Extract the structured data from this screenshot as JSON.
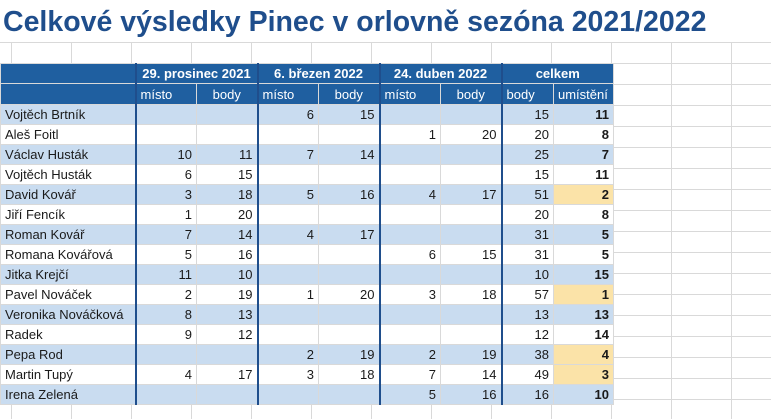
{
  "title": "Celkové výsledky Pinec v orlovně sezóna 2021/2022",
  "headers": {
    "events": [
      "29. prosinec 2021",
      "6. březen 2022",
      "24. duben 2022"
    ],
    "total": "celkem",
    "place": "místo",
    "points": "body",
    "total_points": "body",
    "rank": "umístění"
  },
  "rows": [
    {
      "name": "Vojtěch Brtník",
      "e1p": "",
      "e1b": "",
      "e2p": "6",
      "e2b": "15",
      "e3p": "",
      "e3b": "",
      "body": "15",
      "rank": "11"
    },
    {
      "name": "Aleš Foitl",
      "e1p": "",
      "e1b": "",
      "e2p": "",
      "e2b": "",
      "e3p": "1",
      "e3b": "20",
      "body": "20",
      "rank": "8"
    },
    {
      "name": "Václav Husták",
      "e1p": "10",
      "e1b": "11",
      "e2p": "7",
      "e2b": "14",
      "e3p": "",
      "e3b": "",
      "body": "25",
      "rank": "7"
    },
    {
      "name": "Vojtěch Husták",
      "e1p": "6",
      "e1b": "15",
      "e2p": "",
      "e2b": "",
      "e3p": "",
      "e3b": "",
      "body": "15",
      "rank": "11"
    },
    {
      "name": "David Kovář",
      "e1p": "3",
      "e1b": "18",
      "e2p": "5",
      "e2b": "16",
      "e3p": "4",
      "e3b": "17",
      "body": "51",
      "rank": "2"
    },
    {
      "name": "Jiří Fencík",
      "e1p": "1",
      "e1b": "20",
      "e2p": "",
      "e2b": "",
      "e3p": "",
      "e3b": "",
      "body": "20",
      "rank": "8"
    },
    {
      "name": "Roman Kovář",
      "e1p": "7",
      "e1b": "14",
      "e2p": "4",
      "e2b": "17",
      "e3p": "",
      "e3b": "",
      "body": "31",
      "rank": "5"
    },
    {
      "name": "Romana Kovářová",
      "e1p": "5",
      "e1b": "16",
      "e2p": "",
      "e2b": "",
      "e3p": "6",
      "e3b": "15",
      "body": "31",
      "rank": "5"
    },
    {
      "name": "Jitka Krejčí",
      "e1p": "11",
      "e1b": "10",
      "e2p": "",
      "e2b": "",
      "e3p": "",
      "e3b": "",
      "body": "10",
      "rank": "15"
    },
    {
      "name": "Pavel Nováček",
      "e1p": "2",
      "e1b": "19",
      "e2p": "1",
      "e2b": "20",
      "e3p": "3",
      "e3b": "18",
      "body": "57",
      "rank": "1"
    },
    {
      "name": "Veronika Nováčková",
      "e1p": "8",
      "e1b": "13",
      "e2p": "",
      "e2b": "",
      "e3p": "",
      "e3b": "",
      "body": "13",
      "rank": "13"
    },
    {
      "name": "Radek",
      "e1p": "9",
      "e1b": "12",
      "e2p": "",
      "e2b": "",
      "e3p": "",
      "e3b": "",
      "body": "12",
      "rank": "14"
    },
    {
      "name": "Pepa Rod",
      "e1p": "",
      "e1b": "",
      "e2p": "2",
      "e2b": "19",
      "e3p": "2",
      "e3b": "19",
      "body": "38",
      "rank": "4"
    },
    {
      "name": "Martin Tupý",
      "e1p": "4",
      "e1b": "17",
      "e2p": "3",
      "e2b": "18",
      "e3p": "7",
      "e3b": "14",
      "body": "49",
      "rank": "3"
    },
    {
      "name": "Irena Zelená",
      "e1p": "",
      "e1b": "",
      "e2p": "",
      "e2b": "",
      "e3p": "5",
      "e3b": "16",
      "body": "16",
      "rank": "10"
    }
  ],
  "colors": {
    "header_bg": "#1f5fa0",
    "title": "#1f4e8c",
    "row_alt": "#c9dcf0",
    "medal": "#fbe3a8"
  }
}
